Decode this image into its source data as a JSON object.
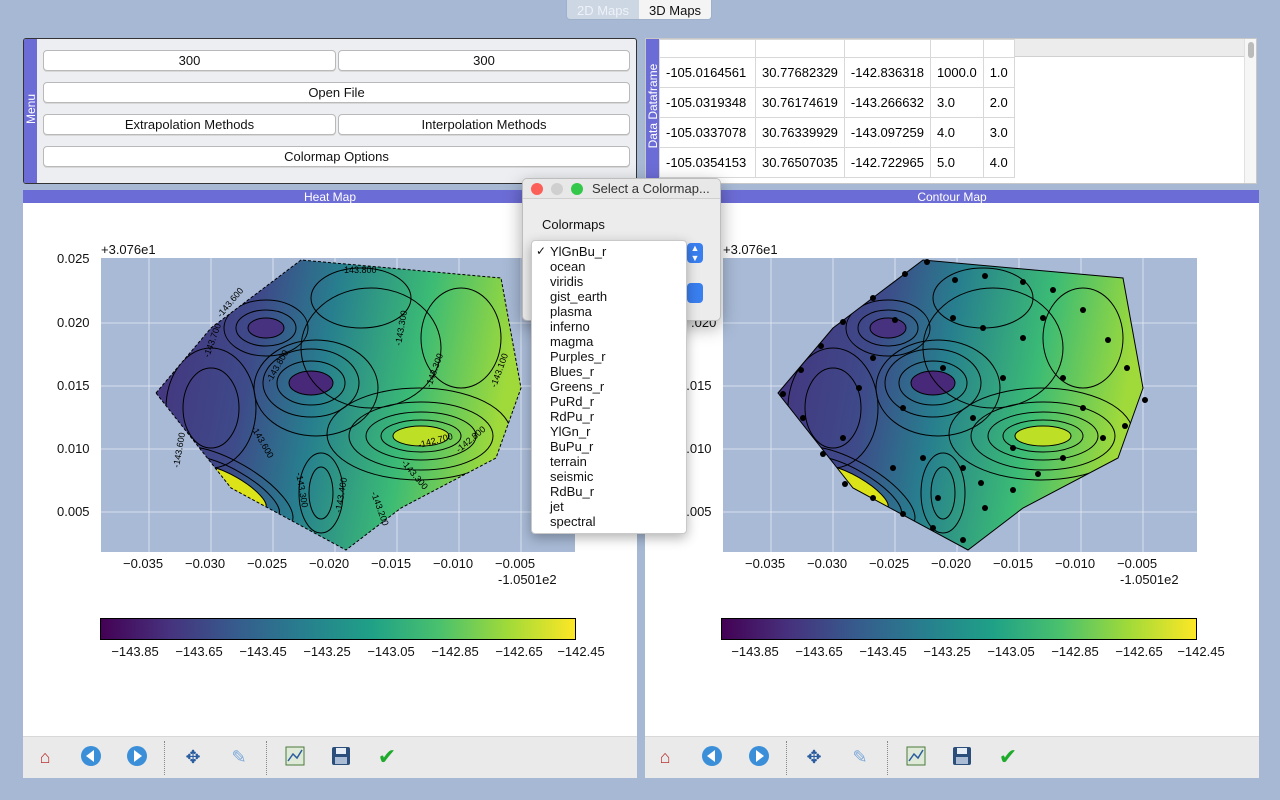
{
  "tabs": [
    {
      "label": "2D Maps",
      "active": false
    },
    {
      "label": "3D Maps",
      "active": true
    }
  ],
  "menu": {
    "side_label": "Menu",
    "width_value": "300",
    "height_value": "300",
    "open_file_label": "Open File",
    "extrapolation_label": "Extrapolation Methods",
    "interpolation_label": "Interpolation Methods",
    "colormap_options_label": "Colormap Options"
  },
  "data_panel": {
    "side_label": "Data Dataframe",
    "rows": [
      [
        "-105.0164561",
        "30.77682329",
        "-142.836318",
        "1000.0",
        "1.0"
      ],
      [
        "-105.0319348",
        "30.76174619",
        "-143.266632",
        "3.0",
        "2.0"
      ],
      [
        "-105.0337078",
        "30.76339929",
        "-143.097259",
        "4.0",
        "3.0"
      ],
      [
        "-105.0354153",
        "30.76507035",
        "-142.722965",
        "5.0",
        "4.0"
      ]
    ]
  },
  "heat_map": {
    "title": "Heat Map",
    "y_offset": "+3.076e1",
    "x_offset": "-1.0501e2",
    "y_ticks": [
      "0.025",
      "0.020",
      "0.015",
      "0.010",
      "0.005"
    ],
    "x_ticks": [
      "−0.035",
      "−0.030",
      "−0.025",
      "−0.020",
      "−0.015",
      "−0.010",
      "−0.005"
    ],
    "contour_labels": [
      "-143.800",
      "-143.600",
      "-143.700",
      "-143.300",
      "-143.800",
      "-143.300",
      "-142.700",
      "-142.800",
      "-143.100",
      "-143.300",
      "-143.400",
      "-143.200",
      "-143.300",
      "-143.600",
      "-143.600"
    ],
    "colorbar_ticks": [
      "−143.85",
      "−143.65",
      "−143.45",
      "−143.25",
      "−143.05",
      "−142.85",
      "−142.65",
      "−142.45"
    ]
  },
  "contour_map": {
    "title": "Contour Map",
    "y_offset": "+3.076e1",
    "x_offset": "-1.0501e2",
    "y_ticks": [
      ".020",
      "0.015",
      "0.010",
      "0.005"
    ],
    "x_ticks": [
      "−0.035",
      "−0.030",
      "−0.025",
      "−0.020",
      "−0.015",
      "−0.010",
      "−0.005"
    ],
    "colorbar_ticks": [
      "−143.85",
      "−143.65",
      "−143.45",
      "−143.25",
      "−143.05",
      "−142.85",
      "−142.65",
      "−142.45"
    ]
  },
  "dialog": {
    "title": "Select a Colormap...",
    "label": "Colormaps",
    "options": [
      "YlGnBu_r",
      "ocean",
      "viridis",
      "gist_earth",
      "plasma",
      "inferno",
      "magma",
      "Purples_r",
      "Blues_r",
      "Greens_r",
      "PuRd_r",
      "RdPu_r",
      "YlGn_r",
      "BuPu_r",
      "terrain",
      "seismic",
      "RdBu_r",
      "jet",
      "spectral"
    ],
    "selected": "YlGnBu_r",
    "check_glyph": "✓"
  },
  "toolbar_icons": [
    "home-icon",
    "back-icon",
    "forward-icon",
    "pan-icon",
    "zoom-icon",
    "configure-subplots-icon",
    "save-icon",
    "check-icon"
  ],
  "colors": {
    "accent": "#6c6cd6",
    "background": "#a6b8d4",
    "colormap": [
      "#440154",
      "#46327e",
      "#365c8d",
      "#277f8e",
      "#1fa187",
      "#4ac16d",
      "#a0da39",
      "#fde725"
    ]
  }
}
